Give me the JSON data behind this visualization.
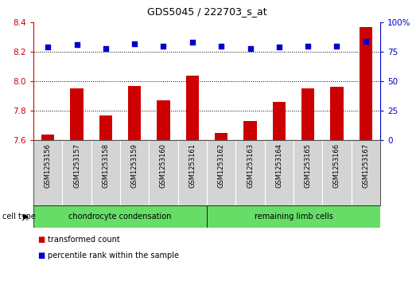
{
  "title": "GDS5045 / 222703_s_at",
  "samples": [
    "GSM1253156",
    "GSM1253157",
    "GSM1253158",
    "GSM1253159",
    "GSM1253160",
    "GSM1253161",
    "GSM1253162",
    "GSM1253163",
    "GSM1253164",
    "GSM1253165",
    "GSM1253166",
    "GSM1253167"
  ],
  "transformed_count": [
    7.64,
    7.95,
    7.77,
    7.97,
    7.87,
    8.04,
    7.65,
    7.73,
    7.86,
    7.95,
    7.96,
    8.37
  ],
  "percentile_rank": [
    79,
    81,
    78,
    82,
    80,
    83,
    80,
    78,
    79,
    80,
    80,
    84
  ],
  "bar_color": "#cc0000",
  "dot_color": "#0000cc",
  "ylim_left": [
    7.6,
    8.4
  ],
  "ylim_right": [
    0,
    100
  ],
  "yticks_left": [
    7.6,
    7.8,
    8.0,
    8.2,
    8.4
  ],
  "yticks_right": [
    0,
    25,
    50,
    75,
    100
  ],
  "grid_lines": [
    7.8,
    8.0,
    8.2
  ],
  "cell_type_groups": [
    {
      "label": "chondrocyte condensation",
      "start": 0,
      "end": 6
    },
    {
      "label": "remaining limb cells",
      "start": 6,
      "end": 12
    }
  ],
  "cell_type_label": "cell type",
  "legend": [
    {
      "label": "transformed count",
      "color": "#cc0000"
    },
    {
      "label": "percentile rank within the sample",
      "color": "#0000cc"
    }
  ],
  "sample_bg_color": "#d4d4d4",
  "cell_type_bg_color": "#66dd66",
  "plot_bg": "#ffffff",
  "bar_width": 0.45
}
